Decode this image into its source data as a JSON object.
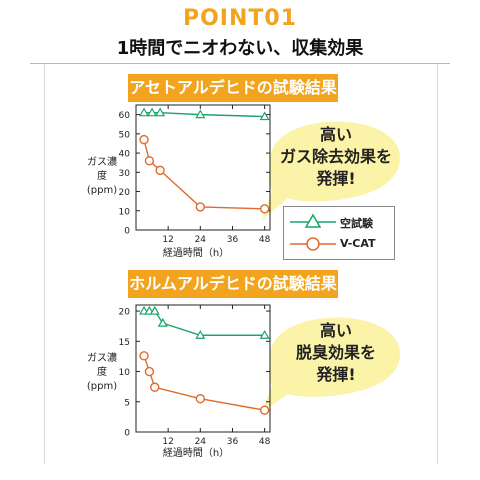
{
  "header": {
    "point_label": "POINT01",
    "headline": "1時間でニオわない、収集効果"
  },
  "legend": {
    "items": [
      {
        "label": "空試験",
        "color": "#1aa66b",
        "marker": "triangle"
      },
      {
        "label": "V-CAT",
        "color": "#e06a2e",
        "marker": "circle"
      }
    ]
  },
  "bubbles": [
    {
      "lines": [
        "高い",
        "ガス除去効果を",
        "発揮!"
      ]
    },
    {
      "lines": [
        "高い",
        "脱臭効果を",
        "発揮!"
      ]
    }
  ],
  "chart_data": [
    {
      "type": "line",
      "title": "アセトアルデヒドの試験結果",
      "xlabel": "経過時間（h）",
      "ylabel": [
        "ガス濃度",
        "(ppm)"
      ],
      "xticks": [
        12,
        24,
        36,
        48
      ],
      "yticks": [
        0,
        10,
        20,
        30,
        40,
        50,
        60
      ],
      "xlim": [
        0,
        50
      ],
      "ylim": [
        0,
        65
      ],
      "grid": false,
      "series": [
        {
          "name": "空試験",
          "color": "#1aa66b",
          "marker": "triangle",
          "x": [
            3,
            6,
            9,
            24,
            48
          ],
          "y": [
            61,
            61,
            61,
            60,
            59
          ]
        },
        {
          "name": "V-CAT",
          "color": "#e06a2e",
          "marker": "circle",
          "x": [
            3,
            5,
            9,
            24,
            48
          ],
          "y": [
            47,
            36,
            31,
            12,
            11
          ]
        }
      ]
    },
    {
      "type": "line",
      "title": "ホルムアルデヒドの試験結果",
      "xlabel": "経過時間（h）",
      "ylabel": [
        "ガス濃度",
        "(ppm)"
      ],
      "xticks": [
        12,
        24,
        36,
        48
      ],
      "yticks": [
        0,
        5,
        10,
        15,
        20
      ],
      "xlim": [
        0,
        50
      ],
      "ylim": [
        0,
        21
      ],
      "grid": false,
      "series": [
        {
          "name": "空試験",
          "color": "#1aa66b",
          "marker": "triangle",
          "x": [
            3,
            5,
            7,
            10,
            24,
            48
          ],
          "y": [
            20,
            20,
            20,
            18,
            16,
            16
          ]
        },
        {
          "name": "V-CAT",
          "color": "#e06a2e",
          "marker": "circle",
          "x": [
            3,
            5,
            7,
            24,
            48
          ],
          "y": [
            12.6,
            10,
            7.4,
            5.5,
            3.6
          ]
        }
      ]
    }
  ]
}
